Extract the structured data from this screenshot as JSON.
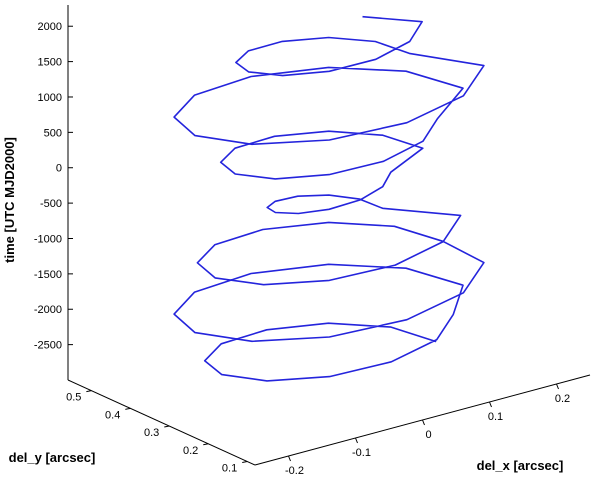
{
  "chart_data": {
    "type": "line3d",
    "xlabel": "del_x [arcsec]",
    "ylabel": "del_y [arcsec]",
    "zlabel": "time [UTC MJD2000]",
    "xlim": [
      -0.25,
      0.25
    ],
    "ylim": [
      0.08,
      0.56
    ],
    "zlim": [
      -3000,
      2300
    ],
    "xticks": [
      -0.2,
      -0.1,
      0,
      0.1,
      0.2
    ],
    "yticks": [
      0.1,
      0.2,
      0.3,
      0.4,
      0.5
    ],
    "zticks": [
      -2500,
      -2000,
      -1500,
      -1000,
      -500,
      0,
      500,
      1000,
      1500,
      2000
    ],
    "grid": false,
    "series": [
      {
        "color": "#2424dc",
        "x": [
          0.16,
          0.139,
          0.08,
          0,
          -0.08,
          -0.139,
          -0.16,
          -0.139,
          -0.08,
          0,
          0.08,
          0.139,
          0.2,
          0.173,
          0.1,
          0,
          -0.1,
          -0.173,
          -0.2,
          -0.173,
          -0.1,
          0,
          0.1,
          0.173,
          0.17,
          0.147,
          0.085,
          0,
          -0.085,
          -0.147,
          -0.17,
          -0.147,
          -0.085,
          0,
          0.085,
          0.147,
          0.08,
          0.069,
          0.04,
          0,
          -0.04,
          -0.069,
          -0.08,
          -0.069,
          -0.04,
          0,
          0.04,
          0.069,
          0.14,
          0.121,
          0.07,
          0,
          -0.07,
          -0.121,
          -0.14,
          -0.121,
          -0.07,
          0,
          0.07,
          0.121,
          0.2,
          0.173,
          0.1,
          0,
          -0.1,
          -0.173,
          -0.2,
          -0.173,
          -0.1,
          0,
          0.1,
          0.173,
          0.12,
          0.104,
          0.06,
          0,
          -0.06,
          -0.104,
          -0.12,
          -0.104,
          -0.06,
          0,
          0.06,
          0.104,
          0.05
        ],
        "y": [
          0.32,
          0.4,
          0.459,
          0.48,
          0.459,
          0.4,
          0.32,
          0.24,
          0.181,
          0.16,
          0.181,
          0.24,
          0.32,
          0.42,
          0.493,
          0.52,
          0.493,
          0.42,
          0.32,
          0.22,
          0.147,
          0.12,
          0.147,
          0.22,
          0.32,
          0.405,
          0.467,
          0.49,
          0.467,
          0.405,
          0.32,
          0.235,
          0.173,
          0.15,
          0.173,
          0.235,
          0.32,
          0.36,
          0.389,
          0.4,
          0.389,
          0.36,
          0.32,
          0.28,
          0.251,
          0.24,
          0.251,
          0.28,
          0.32,
          0.39,
          0.441,
          0.46,
          0.441,
          0.39,
          0.32,
          0.25,
          0.199,
          0.18,
          0.199,
          0.25,
          0.32,
          0.42,
          0.493,
          0.52,
          0.493,
          0.42,
          0.32,
          0.22,
          0.147,
          0.12,
          0.147,
          0.22,
          0.32,
          0.38,
          0.424,
          0.44,
          0.424,
          0.38,
          0.32,
          0.26,
          0.216,
          0.2,
          0.216,
          0.26,
          0.32
        ],
        "z": [
          -2900,
          -2842,
          -2784,
          -2726,
          -2668,
          -2610,
          -2552,
          -2494,
          -2436,
          -2378,
          -2320,
          -2262,
          -2204,
          -2146,
          -2088,
          -2030,
          -1972,
          -1914,
          -1856,
          -1798,
          -1740,
          -1682,
          -1624,
          -1566,
          -1508,
          -1450,
          -1392,
          -1334,
          -1276,
          -1218,
          -1160,
          -1102,
          -1044,
          -986,
          -928,
          -870,
          -812,
          -754,
          -696,
          -638,
          -580,
          -522,
          -464,
          -406,
          -348,
          -290,
          -232,
          -174,
          -116,
          -58,
          0,
          58,
          116,
          174,
          232,
          290,
          348,
          406,
          464,
          522,
          580,
          638,
          696,
          754,
          812,
          870,
          928,
          986,
          1044,
          1102,
          1160,
          1218,
          1276,
          1334,
          1392,
          1450,
          1508,
          1566,
          1624,
          1682,
          1740,
          1798,
          1856,
          1914,
          1972
        ]
      }
    ]
  }
}
